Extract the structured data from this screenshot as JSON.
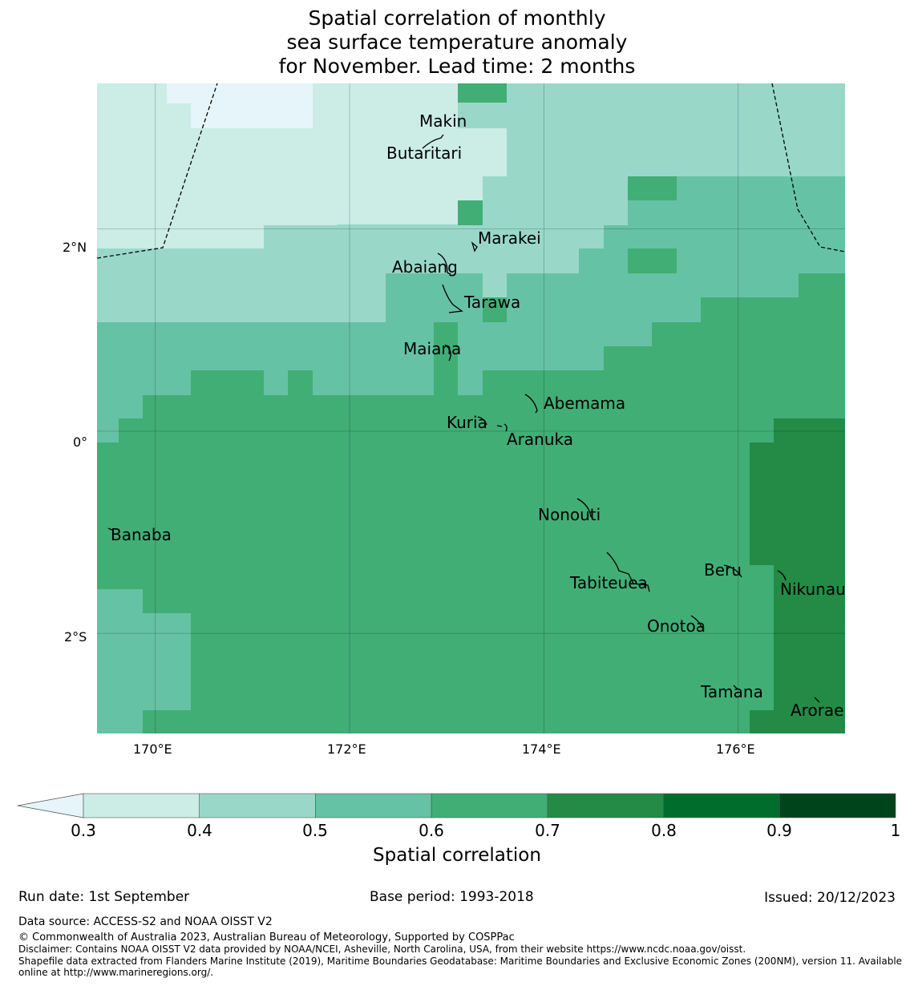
{
  "title": {
    "line1": "Spatial correlation of monthly",
    "line2": "sea surface temperature anomaly",
    "line3": "for November. Lead time: 2 months"
  },
  "map": {
    "lon_range": [
      169.4,
      177.1
    ],
    "lat_range": [
      -2.99,
      3.44
    ],
    "x_ticks": [
      "170°E",
      "172°E",
      "174°E",
      "176°E"
    ],
    "y_ticks": [
      "2°N",
      "0°",
      "2°S"
    ],
    "islands": [
      {
        "name": "Makin",
        "lon": 173.0,
        "lat": 3.3
      },
      {
        "name": "Butaritari",
        "lon": 172.8,
        "lat": 3.07
      },
      {
        "name": "Marakei",
        "lon": 173.3,
        "lat": 2.0
      },
      {
        "name": "Abaiang",
        "lon": 172.95,
        "lat": 1.85
      },
      {
        "name": "Tarawa",
        "lon": 173.0,
        "lat": 1.45
      },
      {
        "name": "Maiana",
        "lon": 173.0,
        "lat": 0.92
      },
      {
        "name": "Abemama",
        "lon": 173.85,
        "lat": 0.4
      },
      {
        "name": "Kuria",
        "lon": 173.4,
        "lat": 0.22
      },
      {
        "name": "Aranuka",
        "lon": 173.6,
        "lat": 0.18
      },
      {
        "name": "Nonouti",
        "lon": 174.4,
        "lat": -0.65
      },
      {
        "name": "Banaba",
        "lon": 169.53,
        "lat": -0.86
      },
      {
        "name": "Beru",
        "lon": 176.0,
        "lat": -1.33
      },
      {
        "name": "Tabiteuea",
        "lon": 174.9,
        "lat": -1.38
      },
      {
        "name": "Nikunau",
        "lon": 176.45,
        "lat": -1.38
      },
      {
        "name": "Onotoa",
        "lon": 175.55,
        "lat": -1.8
      },
      {
        "name": "Tamana",
        "lon": 175.98,
        "lat": -2.5
      },
      {
        "name": "Arorae",
        "lon": 176.82,
        "lat": -2.64
      }
    ]
  },
  "colorbar": {
    "ticks": [
      "0.3",
      "0.4",
      "0.5",
      "0.6",
      "0.7",
      "0.8",
      "0.9",
      "1"
    ],
    "label": "Spatial correlation",
    "colors": [
      "#e5f5f9",
      "#ccece6",
      "#99d8c9",
      "#66c2a4",
      "#41ae76",
      "#238b45",
      "#006d2c",
      "#00441b"
    ]
  },
  "footer": {
    "run_date": "Run date: 1st September",
    "base_period": "Base period: 1993-2018",
    "issued": "Issued: 20/12/2023",
    "data_source": "Data source: ACCESS-S2 and NOAA OISST V2",
    "copyright": "© Commonwealth of Australia 2023, Australian Bureau of Meteorology, Supported by COSPPac",
    "disclaimer": "Disclaimer: Contains NOAA OISST V2 data provided by NOAA/NCEI, Asheville, North Carolina, USA, from their website https://www.ncdc.noaa.gov/oisst.",
    "shapefile": "Shapefile data extracted from Flanders Marine Institute (2019), Maritime Boundaries Geodatabase: Maritime Boundaries and Exclusive Economic Zones (200NM), version 11. Available online at http://www.marineregions.org/."
  }
}
